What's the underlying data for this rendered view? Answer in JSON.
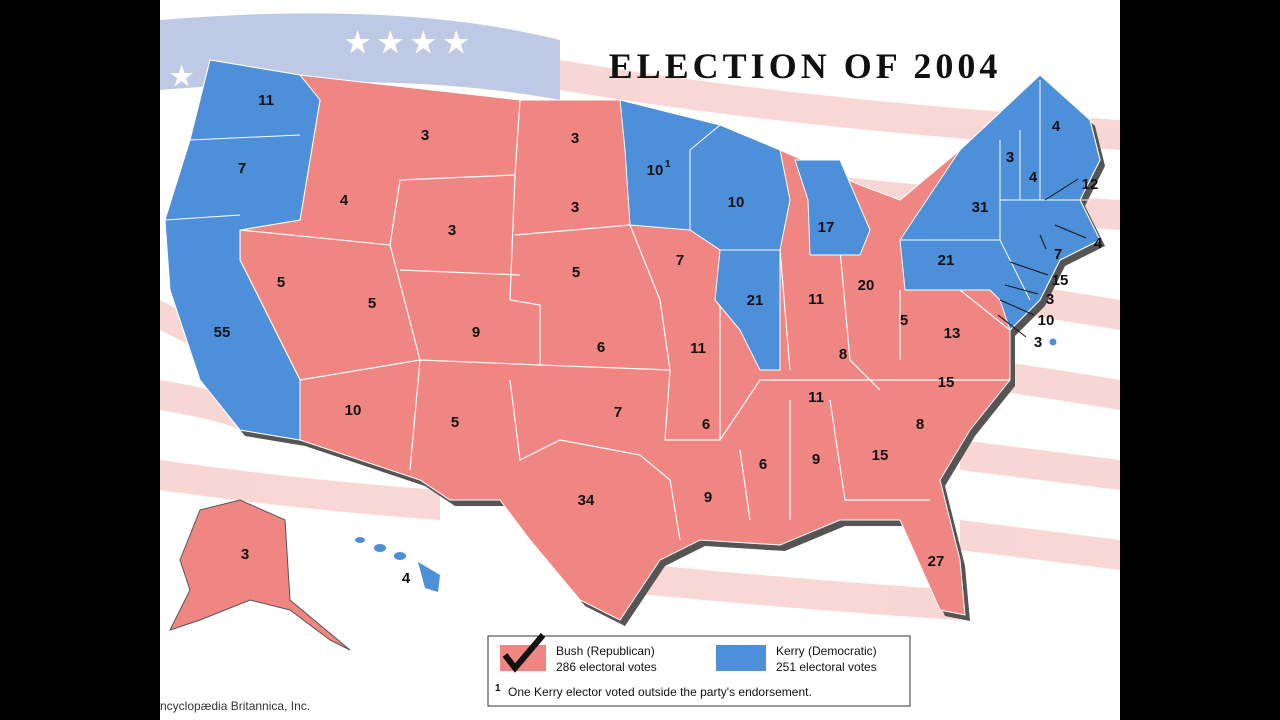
{
  "title": "ELECTION OF 2004",
  "kerry_states": [
    {
      "text": "11"
    },
    {
      "text": "7"
    },
    {
      "text": "55"
    },
    {
      "text": "10",
      "note": "1"
    },
    {
      "text": "10"
    },
    {
      "text": "17"
    },
    {
      "text": "21"
    },
    {
      "text": "21"
    },
    {
      "text": "31"
    },
    {
      "text": "3"
    },
    {
      "text": "4"
    },
    {
      "text": "4"
    },
    {
      "text": "4"
    },
    {
      "text": "12"
    },
    {
      "text": "4"
    },
    {
      "text": "7"
    },
    {
      "text": "15"
    },
    {
      "text": "3"
    },
    {
      "text": "10"
    },
    {
      "text": "3"
    }
  ],
  "bush_states": [
    {
      "text": "3"
    },
    {
      "text": "4"
    },
    {
      "text": "3"
    },
    {
      "text": "5"
    },
    {
      "text": "5"
    },
    {
      "text": "9"
    },
    {
      "text": "10"
    },
    {
      "text": "5"
    },
    {
      "text": "3"
    },
    {
      "text": "3"
    },
    {
      "text": "5"
    },
    {
      "text": "6"
    },
    {
      "text": "7"
    },
    {
      "text": "34"
    },
    {
      "text": "7"
    },
    {
      "text": "11"
    },
    {
      "text": "6"
    },
    {
      "text": "9"
    },
    {
      "text": "6"
    },
    {
      "text": "9"
    },
    {
      "text": "15"
    },
    {
      "text": "27"
    },
    {
      "text": "8"
    },
    {
      "text": "15"
    },
    {
      "text": "11"
    },
    {
      "text": "8"
    },
    {
      "text": "11"
    },
    {
      "text": "20"
    },
    {
      "text": "5"
    },
    {
      "text": "13"
    },
    {
      "text": "3"
    }
  ],
  "legend": {
    "bush_name": "Bush (Republican)",
    "bush_votes": "286 electoral votes",
    "kerry_name": "Kerry (Democratic)",
    "kerry_votes": "251 electoral votes",
    "footnote_marker": "1",
    "footnote": "One Kerry elector voted outside the party's endorsement."
  },
  "credit": "ncyclopædia Britannica, Inc."
}
